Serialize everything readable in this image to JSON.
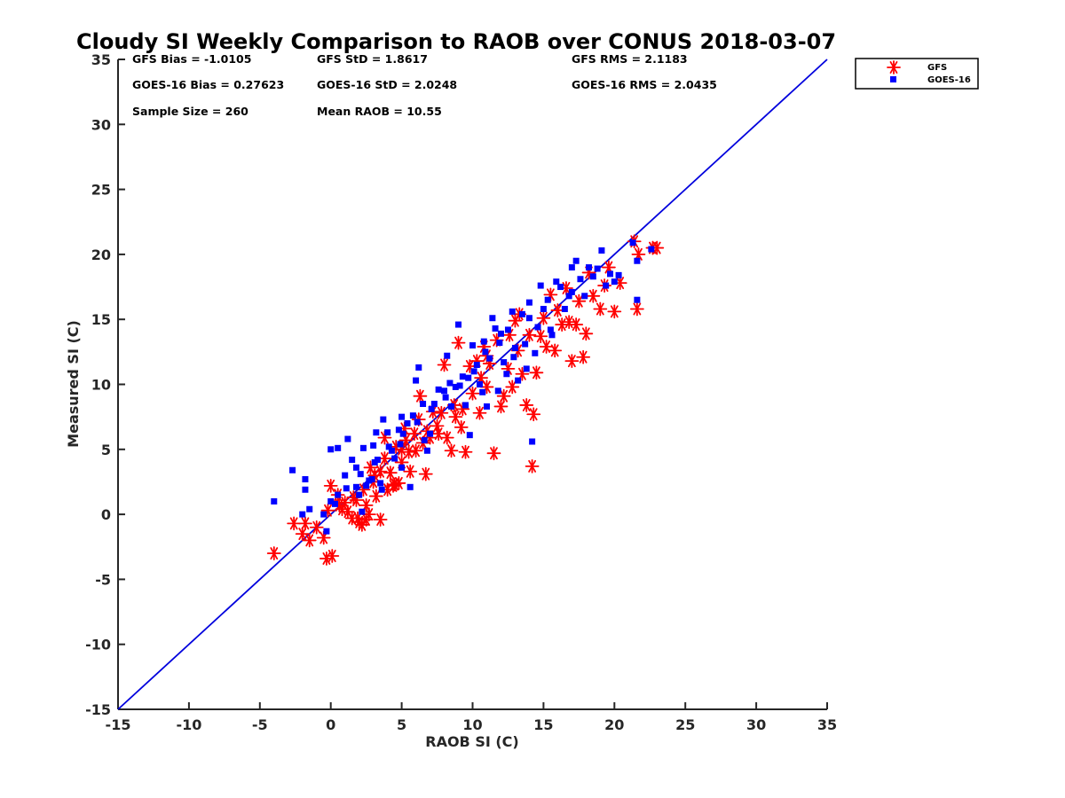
{
  "chart_data": {
    "type": "scatter",
    "title": "Cloudy SI Weekly Comparison to RAOB over CONUS 2018-03-07",
    "xlabel": "RAOB SI (C)",
    "ylabel": "Measured SI (C)",
    "xlim": [
      -15,
      35
    ],
    "ylim": [
      -15,
      35
    ],
    "xticks": [
      -15,
      -10,
      -5,
      0,
      5,
      10,
      15,
      20,
      25,
      30,
      35
    ],
    "yticks": [
      -15,
      -10,
      -5,
      0,
      5,
      10,
      15,
      20,
      25,
      30,
      35
    ],
    "grid": false,
    "legend": {
      "placement": "outside-top-right"
    },
    "reference_line": {
      "x": [
        -15,
        35
      ],
      "y": [
        -15,
        35
      ],
      "color": "#0000dd"
    },
    "stats": [
      [
        "GFS Bias = -1.0105",
        "GFS StD = 1.8617",
        "GFS RMS = 2.1183"
      ],
      [
        "GOES-16 Bias = 0.27623",
        "GOES-16 StD = 2.0248",
        "GOES-16 RMS = 2.0435"
      ],
      [
        "Sample Size = 260",
        "Mean RAOB = 10.55",
        ""
      ]
    ],
    "series": [
      {
        "name": "GFS",
        "marker": "asterisk",
        "color": "#ff0000",
        "points": [
          [
            -4,
            -3
          ],
          [
            -2.6,
            -0.7
          ],
          [
            -2,
            -1.5
          ],
          [
            -1.5,
            -2
          ],
          [
            -1.8,
            -0.7
          ],
          [
            -1,
            -1
          ],
          [
            -0.5,
            -1.8
          ],
          [
            -0.3,
            -3.4
          ],
          [
            0.1,
            -3.2
          ],
          [
            0,
            2.2
          ],
          [
            0.5,
            1.5
          ],
          [
            0.8,
            0.4
          ],
          [
            1,
            0.9
          ],
          [
            1.2,
            0.2
          ],
          [
            1.5,
            -0.3
          ],
          [
            1.8,
            1.1
          ],
          [
            2,
            -0.6
          ],
          [
            2.2,
            -0.8
          ],
          [
            2.5,
            0.7
          ],
          [
            2.7,
            0
          ],
          [
            3,
            2.5
          ],
          [
            3.2,
            1.4
          ],
          [
            3.5,
            -0.4
          ],
          [
            3.5,
            3.3
          ],
          [
            3.8,
            5.9
          ],
          [
            4,
            1.9
          ],
          [
            4.2,
            3.2
          ],
          [
            4.5,
            2.3
          ],
          [
            4.8,
            2.4
          ],
          [
            5,
            4
          ],
          [
            5,
            5
          ],
          [
            5.3,
            5.7
          ],
          [
            5.5,
            4.8
          ],
          [
            5.6,
            3.3
          ],
          [
            5.9,
            6.2
          ],
          [
            6,
            4.9
          ],
          [
            6.2,
            7.3
          ],
          [
            6.3,
            9.1
          ],
          [
            6.5,
            5.5
          ],
          [
            6.7,
            3.1
          ],
          [
            7,
            5.9
          ],
          [
            7.2,
            7.9
          ],
          [
            7.5,
            6.8
          ],
          [
            7.8,
            7.8
          ],
          [
            8,
            11.5
          ],
          [
            8.2,
            5.9
          ],
          [
            8.5,
            4.9
          ],
          [
            8.8,
            7.5
          ],
          [
            9,
            13.2
          ],
          [
            9.2,
            6.7
          ],
          [
            9.5,
            4.8
          ],
          [
            9.8,
            11.4
          ],
          [
            10,
            9.3
          ],
          [
            10.3,
            11.8
          ],
          [
            10.5,
            7.8
          ],
          [
            10.8,
            12.9
          ],
          [
            11,
            9.8
          ],
          [
            11.2,
            11.6
          ],
          [
            11.5,
            4.7
          ],
          [
            11.7,
            13.4
          ],
          [
            12,
            8.3
          ],
          [
            12.2,
            9.1
          ],
          [
            12.5,
            11.2
          ],
          [
            12.8,
            9.8
          ],
          [
            13,
            14.9
          ],
          [
            13.2,
            12.6
          ],
          [
            13.5,
            10.8
          ],
          [
            13.8,
            8.4
          ],
          [
            14,
            13.8
          ],
          [
            14.2,
            3.7
          ],
          [
            14.3,
            7.7
          ],
          [
            14.5,
            10.9
          ],
          [
            14.8,
            13.7
          ],
          [
            15,
            15.1
          ],
          [
            15.2,
            12.9
          ],
          [
            15.5,
            16.9
          ],
          [
            15.8,
            12.6
          ],
          [
            16,
            15.7
          ],
          [
            16.3,
            14.6
          ],
          [
            16.6,
            17.4
          ],
          [
            16.8,
            14.8
          ],
          [
            17,
            11.8
          ],
          [
            17.3,
            14.6
          ],
          [
            17.5,
            16.4
          ],
          [
            17.8,
            12.1
          ],
          [
            18,
            13.9
          ],
          [
            18.2,
            18.6
          ],
          [
            18.5,
            16.8
          ],
          [
            19,
            15.8
          ],
          [
            19.3,
            17.6
          ],
          [
            19.6,
            19
          ],
          [
            20,
            15.6
          ],
          [
            20.4,
            17.8
          ],
          [
            21.6,
            15.8
          ],
          [
            21.7,
            20
          ],
          [
            21.4,
            21
          ],
          [
            22.7,
            20.5
          ],
          [
            23,
            20.5
          ],
          [
            13.3,
            15.4
          ],
          [
            12.6,
            13.8
          ],
          [
            11,
            12.2
          ],
          [
            10.6,
            10.5
          ],
          [
            9.3,
            8.1
          ],
          [
            8.7,
            8.4
          ],
          [
            7.6,
            6.2
          ],
          [
            6.8,
            6.4
          ],
          [
            5.2,
            6.6
          ],
          [
            4.6,
            5.2
          ],
          [
            3.8,
            4.3
          ],
          [
            2.8,
            3.6
          ],
          [
            2.3,
            1.9
          ],
          [
            1.6,
            1.3
          ],
          [
            0.6,
            0.7
          ],
          [
            -0.2,
            0.3
          ],
          [
            2.5,
            -0.4
          ],
          [
            1.9,
            -0.3
          ],
          [
            3.1,
            3
          ],
          [
            4.4,
            2.2
          ]
        ]
      },
      {
        "name": "GOES-16",
        "marker": "square",
        "color": "#0000ff",
        "points": [
          [
            -4,
            1
          ],
          [
            -2.7,
            3.4
          ],
          [
            -1.8,
            2.7
          ],
          [
            -1.8,
            1.9
          ],
          [
            -1.5,
            0.4
          ],
          [
            -2,
            0
          ],
          [
            -0.5,
            0
          ],
          [
            -0.3,
            -1.3
          ],
          [
            0,
            1
          ],
          [
            0,
            5
          ],
          [
            0.5,
            5.1
          ],
          [
            0.5,
            1.5
          ],
          [
            1,
            3
          ],
          [
            1.2,
            5.8
          ],
          [
            1.5,
            4.2
          ],
          [
            1.8,
            2.1
          ],
          [
            2,
            1.5
          ],
          [
            2.2,
            0.2
          ],
          [
            2.3,
            5.1
          ],
          [
            2.5,
            2.2
          ],
          [
            2.7,
            2.6
          ],
          [
            3,
            5.3
          ],
          [
            3.2,
            6.3
          ],
          [
            3.3,
            4.2
          ],
          [
            3.5,
            2.4
          ],
          [
            3.6,
            1.9
          ],
          [
            3.7,
            7.3
          ],
          [
            4,
            6.3
          ],
          [
            4.3,
            4.9
          ],
          [
            4.5,
            4.3
          ],
          [
            4.8,
            6.5
          ],
          [
            5,
            7.5
          ],
          [
            5,
            3.6
          ],
          [
            5.4,
            7
          ],
          [
            5.6,
            2.1
          ],
          [
            6,
            10.3
          ],
          [
            6.2,
            11.3
          ],
          [
            6.5,
            8.5
          ],
          [
            6.8,
            4.9
          ],
          [
            7,
            6.2
          ],
          [
            7.3,
            8.5
          ],
          [
            7.6,
            9.6
          ],
          [
            8,
            9.5
          ],
          [
            8.2,
            12.2
          ],
          [
            8.5,
            8.3
          ],
          [
            8.8,
            9.8
          ],
          [
            9,
            14.6
          ],
          [
            9.3,
            10.6
          ],
          [
            9.5,
            8.4
          ],
          [
            9.8,
            6.1
          ],
          [
            10,
            13
          ],
          [
            10.3,
            11.5
          ],
          [
            10.5,
            10
          ],
          [
            10.8,
            13.3
          ],
          [
            11,
            8.3
          ],
          [
            11.2,
            12
          ],
          [
            11.4,
            15.1
          ],
          [
            11.6,
            14.3
          ],
          [
            11.8,
            9.5
          ],
          [
            12,
            13.9
          ],
          [
            12.2,
            11.7
          ],
          [
            12.5,
            14.2
          ],
          [
            12.8,
            15.6
          ],
          [
            13,
            12.8
          ],
          [
            13.2,
            10.3
          ],
          [
            13.5,
            15.4
          ],
          [
            13.7,
            13.1
          ],
          [
            14,
            16.3
          ],
          [
            14.2,
            5.6
          ],
          [
            14.4,
            12.4
          ],
          [
            14.6,
            14.4
          ],
          [
            14.8,
            17.6
          ],
          [
            15,
            15.8
          ],
          [
            15.3,
            16.5
          ],
          [
            15.6,
            13.8
          ],
          [
            15.9,
            17.9
          ],
          [
            16.2,
            17.5
          ],
          [
            16.5,
            15.8
          ],
          [
            16.8,
            16.8
          ],
          [
            17,
            17.1
          ],
          [
            17.3,
            19.5
          ],
          [
            17.6,
            18.1
          ],
          [
            17.9,
            16.8
          ],
          [
            18.2,
            19
          ],
          [
            18.5,
            18.3
          ],
          [
            18.8,
            18.9
          ],
          [
            19.1,
            20.3
          ],
          [
            19.4,
            17.6
          ],
          [
            19.7,
            18.5
          ],
          [
            20,
            17.9
          ],
          [
            20.3,
            18.4
          ],
          [
            21.3,
            20.9
          ],
          [
            21.6,
            19.5
          ],
          [
            21.6,
            16.5
          ],
          [
            22.6,
            20.4
          ],
          [
            12.9,
            12.1
          ],
          [
            11.9,
            13.2
          ],
          [
            10.9,
            12.5
          ],
          [
            10.1,
            11
          ],
          [
            9.1,
            9.9
          ],
          [
            8.1,
            9
          ],
          [
            7.1,
            8.1
          ],
          [
            6.1,
            7.1
          ],
          [
            5.1,
            6.2
          ],
          [
            4.1,
            5.2
          ],
          [
            3.1,
            4
          ],
          [
            2.1,
            3.1
          ],
          [
            1.1,
            2
          ],
          [
            0.3,
            0.8
          ],
          [
            17,
            19
          ],
          [
            15.5,
            14.2
          ],
          [
            14,
            15.1
          ],
          [
            13.8,
            11.2
          ],
          [
            12.4,
            10.8
          ],
          [
            10.7,
            9.4
          ],
          [
            9.7,
            10.5
          ],
          [
            8.4,
            10.1
          ],
          [
            6.6,
            5.7
          ],
          [
            5.8,
            7.6
          ],
          [
            4.9,
            5.4
          ],
          [
            2.9,
            2.7
          ],
          [
            1.8,
            3.6
          ]
        ]
      }
    ]
  }
}
